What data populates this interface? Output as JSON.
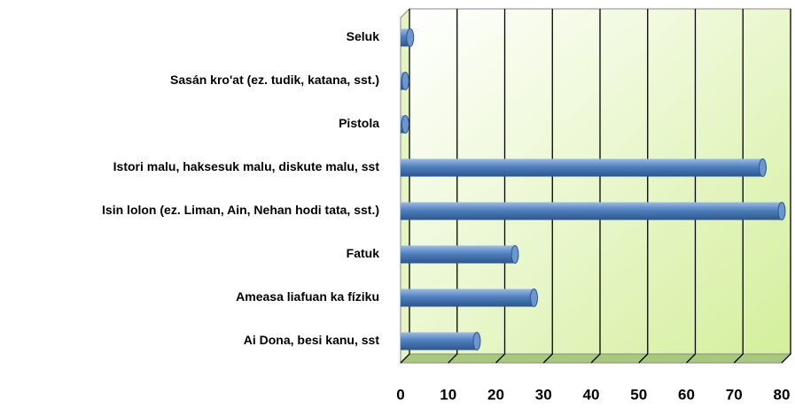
{
  "chart_data": {
    "type": "bar",
    "orientation": "horizontal",
    "categories": [
      "Seluk",
      "Sasán kro'at (ez. tudik, katana, sst.)",
      "Pistola",
      "Istori malu, haksesuk malu, diskute malu, sst",
      "Isin lolon (ez. Liman, Ain, Nehan hodi tata, sst.)",
      "Fatuk",
      "Ameasa liafuan ka fíziku",
      "Ai Dona, besi kanu, sst"
    ],
    "values": [
      2,
      1,
      1,
      76,
      80,
      24,
      28,
      16
    ],
    "color": "#4f81bd",
    "xlim": [
      0,
      80
    ],
    "xticks": [
      0,
      10,
      20,
      30,
      40,
      50,
      60,
      70,
      80
    ],
    "grid": true
  }
}
